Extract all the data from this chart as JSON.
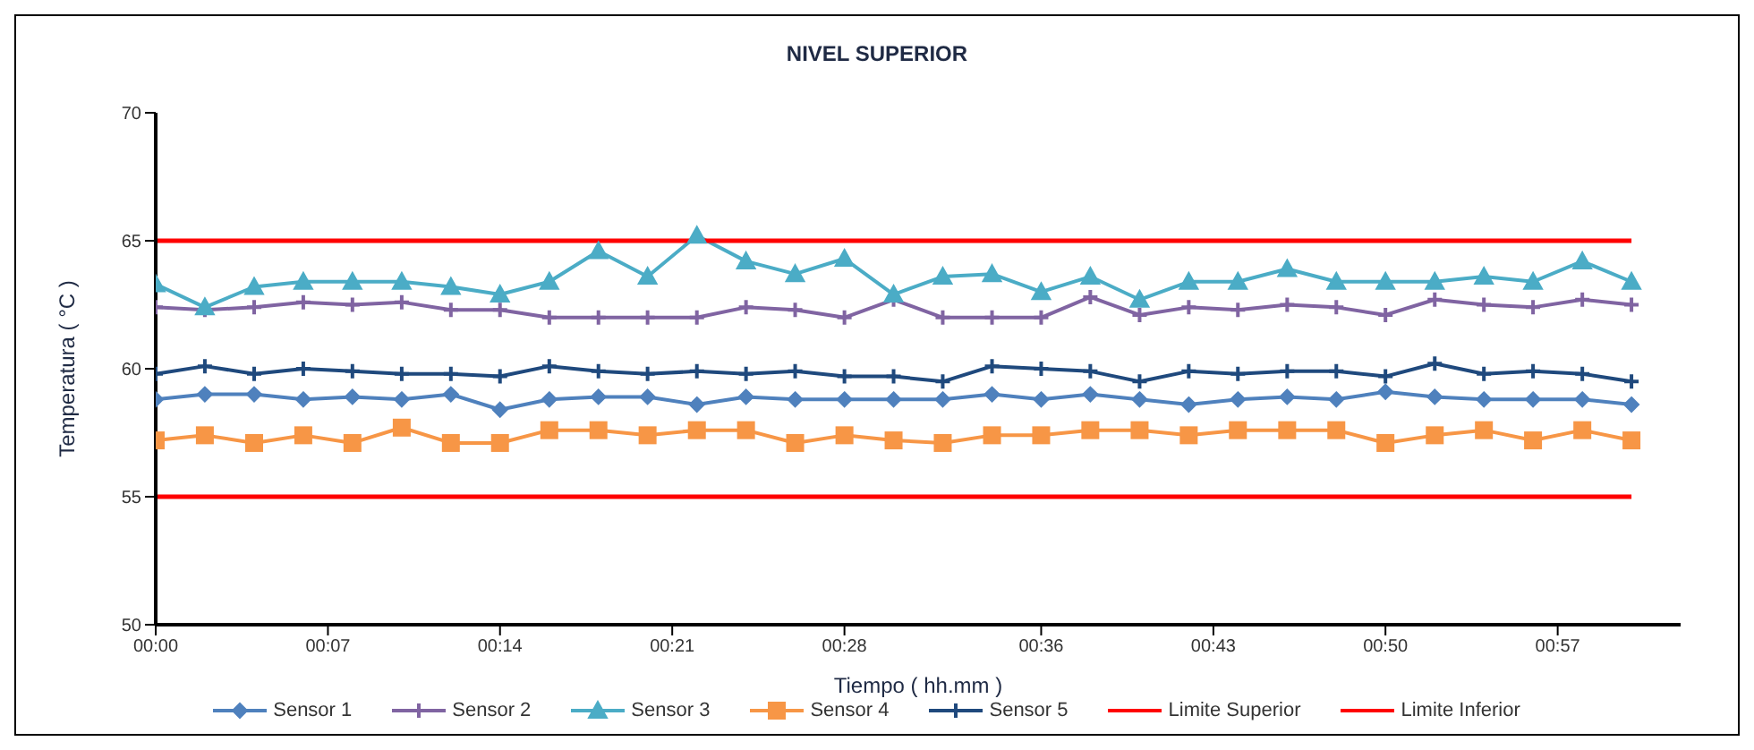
{
  "chart_data": {
    "type": "line",
    "title": "NIVEL SUPERIOR",
    "xlabel": "Tiempo ( hh.mm )",
    "ylabel": "Temperatura ( °C )",
    "x": [
      0,
      0.0333,
      0.0667,
      0.1,
      0.1333,
      0.1667,
      0.2,
      0.2333,
      0.2667,
      0.3,
      0.3333,
      0.3667,
      0.4,
      0.4333,
      0.4667,
      0.5,
      0.5333,
      0.5667,
      0.6,
      0.6333,
      0.6667,
      0.7,
      0.7333,
      0.7667,
      0.8,
      0.8333,
      0.8667,
      0.9,
      0.9333,
      0.9667,
      1.0
    ],
    "series": [
      {
        "name": "Sensor 1",
        "color": "#4f81bd",
        "marker": "diamond",
        "values": [
          58.8,
          59.0,
          59.0,
          58.8,
          58.9,
          58.8,
          59.0,
          58.4,
          58.8,
          58.9,
          58.9,
          58.6,
          58.9,
          58.8,
          58.8,
          58.8,
          58.8,
          59.0,
          58.8,
          59.0,
          58.8,
          58.6,
          58.8,
          58.9,
          58.8,
          59.1,
          58.9,
          58.8,
          58.8,
          58.8,
          58.6
        ]
      },
      {
        "name": "Sensor 2",
        "color": "#8064a2",
        "marker": "cross",
        "values": [
          62.4,
          62.3,
          62.4,
          62.6,
          62.5,
          62.6,
          62.3,
          62.3,
          62.0,
          62.0,
          62.0,
          62.0,
          62.4,
          62.3,
          62.0,
          62.7,
          62.0,
          62.0,
          62.0,
          62.8,
          62.1,
          62.4,
          62.3,
          62.5,
          62.4,
          62.1,
          62.7,
          62.5,
          62.4,
          62.7,
          62.5
        ]
      },
      {
        "name": "Sensor 3",
        "color": "#4bacc6",
        "marker": "triangle",
        "values": [
          63.3,
          62.4,
          63.2,
          63.4,
          63.4,
          63.4,
          63.2,
          62.9,
          63.4,
          64.6,
          63.6,
          65.2,
          64.2,
          63.7,
          64.3,
          62.9,
          63.6,
          63.7,
          63.0,
          63.6,
          62.7,
          63.4,
          63.4,
          63.9,
          63.4,
          63.4,
          63.4,
          63.6,
          63.4,
          64.2,
          63.4
        ]
      },
      {
        "name": "Sensor 4",
        "color": "#f79646",
        "marker": "square",
        "values": [
          57.2,
          57.4,
          57.1,
          57.4,
          57.1,
          57.7,
          57.1,
          57.1,
          57.6,
          57.6,
          57.4,
          57.6,
          57.6,
          57.1,
          57.4,
          57.2,
          57.1,
          57.4,
          57.4,
          57.6,
          57.6,
          57.4,
          57.6,
          57.6,
          57.6,
          57.1,
          57.4,
          57.6,
          57.2,
          57.6,
          57.2
        ]
      },
      {
        "name": "Sensor 5",
        "color": "#1f497d",
        "marker": "cross",
        "values": [
          59.8,
          60.1,
          59.8,
          60.0,
          59.9,
          59.8,
          59.8,
          59.7,
          60.1,
          59.9,
          59.8,
          59.9,
          59.8,
          59.9,
          59.7,
          59.7,
          59.5,
          60.1,
          60.0,
          59.9,
          59.5,
          59.9,
          59.8,
          59.9,
          59.9,
          59.7,
          60.2,
          59.8,
          59.9,
          59.8,
          59.5
        ]
      },
      {
        "name": "Limite Superior",
        "color": "#ff0000",
        "marker": "none",
        "values": [
          65,
          65,
          65,
          65,
          65,
          65,
          65,
          65,
          65,
          65,
          65,
          65,
          65,
          65,
          65,
          65,
          65,
          65,
          65,
          65,
          65,
          65,
          65,
          65,
          65,
          65,
          65,
          65,
          65,
          65,
          65
        ]
      },
      {
        "name": "Limite Inferior",
        "color": "#ff0000",
        "marker": "none",
        "values": [
          55,
          55,
          55,
          55,
          55,
          55,
          55,
          55,
          55,
          55,
          55,
          55,
          55,
          55,
          55,
          55,
          55,
          55,
          55,
          55,
          55,
          55,
          55,
          55,
          55,
          55,
          55,
          55,
          55,
          55,
          55
        ]
      }
    ],
    "xlim": [
      0,
      1.0333
    ],
    "xticks": [
      {
        "value": 0,
        "label": "00:00"
      },
      {
        "value": 0.1167,
        "label": "00:07"
      },
      {
        "value": 0.2333,
        "label": "00:14"
      },
      {
        "value": 0.35,
        "label": "00:21"
      },
      {
        "value": 0.4667,
        "label": "00:28"
      },
      {
        "value": 0.6,
        "label": "00:36"
      },
      {
        "value": 0.7167,
        "label": "00:43"
      },
      {
        "value": 0.8333,
        "label": "00:50"
      },
      {
        "value": 0.95,
        "label": "00:57"
      }
    ],
    "ylim": [
      50,
      70
    ],
    "yticks": [
      50,
      55,
      60,
      65,
      70
    ],
    "grid": false,
    "legend": "bottom",
    "line_style": "solid"
  }
}
